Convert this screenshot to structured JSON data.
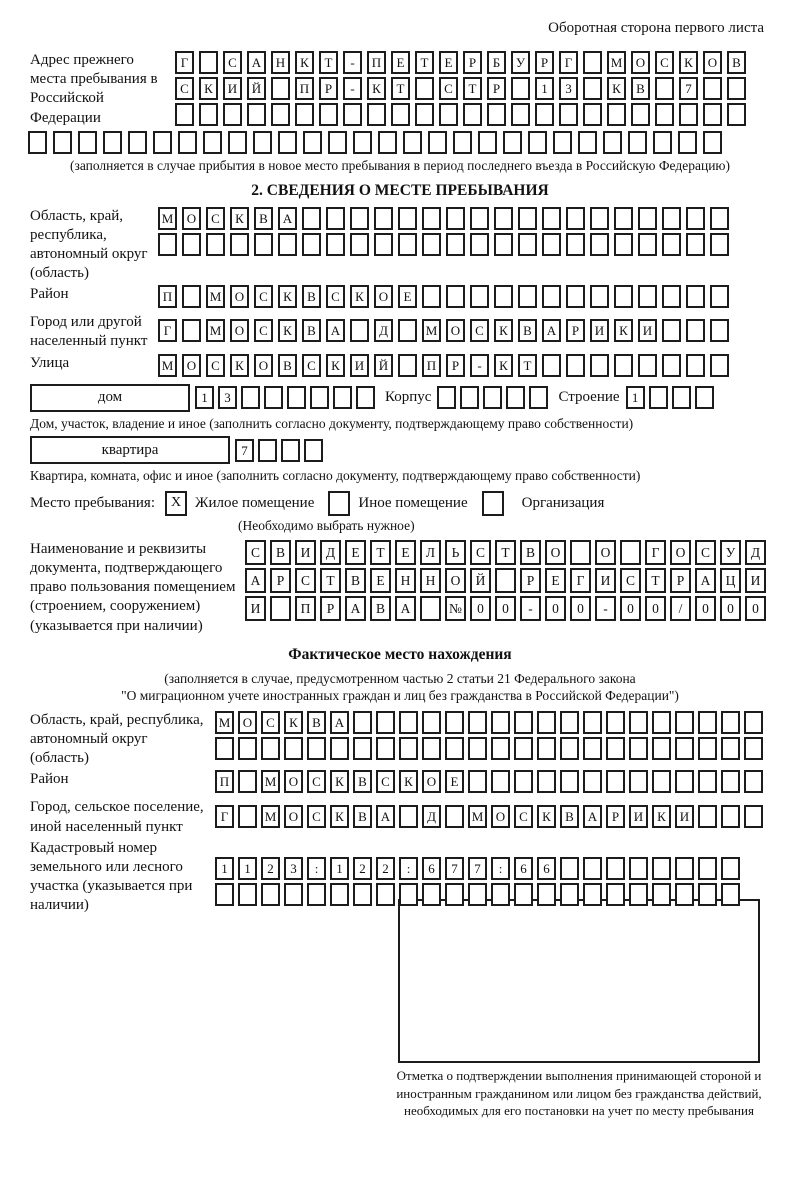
{
  "header": {
    "note": "Оборотная сторона первого листа"
  },
  "prev_address": {
    "label": "Адрес прежнего места пребывания в Российской Федерации",
    "rows": [
      [
        "Г",
        "",
        "С",
        "А",
        "Н",
        "К",
        "Т",
        "-",
        "П",
        "Е",
        "Т",
        "Е",
        "Р",
        "Б",
        "У",
        "Р",
        "Г",
        "",
        "М",
        "О",
        "С",
        "К",
        "О",
        "В"
      ],
      [
        "С",
        "К",
        "И",
        "Й",
        "",
        "П",
        "Р",
        "-",
        "К",
        "Т",
        "",
        "С",
        "Т",
        "Р",
        "",
        "1",
        "3",
        "",
        "К",
        "В",
        "",
        "7",
        "",
        ""
      ],
      [
        "",
        "",
        "",
        "",
        "",
        "",
        "",
        "",
        "",
        "",
        "",
        "",
        "",
        "",
        "",
        "",
        "",
        "",
        "",
        "",
        "",
        "",
        "",
        ""
      ]
    ],
    "overflow_row": [
      "",
      "",
      "",
      "",
      "",
      "",
      "",
      "",
      "",
      "",
      "",
      "",
      "",
      "",
      "",
      "",
      "",
      "",
      "",
      "",
      "",
      "",
      "",
      "",
      "",
      "",
      "",
      ""
    ],
    "note": "(заполняется в случае прибытия в новое место пребывания в период последнего въезда в Российскую Федерацию)"
  },
  "section2": {
    "title": "2. СВЕДЕНИЯ О МЕСТЕ ПРЕБЫВАНИЯ",
    "region": {
      "label": "Область, край, республика, автономный округ (область)",
      "rows": [
        [
          "М",
          "О",
          "С",
          "К",
          "В",
          "А",
          "",
          "",
          "",
          "",
          "",
          "",
          "",
          "",
          "",
          "",
          "",
          "",
          "",
          "",
          "",
          "",
          "",
          ""
        ],
        [
          "",
          "",
          "",
          "",
          "",
          "",
          "",
          "",
          "",
          "",
          "",
          "",
          "",
          "",
          "",
          "",
          "",
          "",
          "",
          "",
          "",
          "",
          "",
          ""
        ]
      ]
    },
    "district": {
      "label": "Район",
      "row": [
        "П",
        "",
        "М",
        "О",
        "С",
        "К",
        "В",
        "С",
        "К",
        "О",
        "Е",
        "",
        "",
        "",
        "",
        "",
        "",
        "",
        "",
        "",
        "",
        "",
        "",
        ""
      ]
    },
    "city": {
      "label": "Город или другой населенный пункт",
      "row": [
        "Г",
        "",
        "М",
        "О",
        "С",
        "К",
        "В",
        "А",
        "",
        "Д",
        "",
        "М",
        "О",
        "С",
        "К",
        "В",
        "А",
        "Р",
        "И",
        "К",
        "И",
        "",
        "",
        ""
      ]
    },
    "street": {
      "label": "Улица",
      "row": [
        "М",
        "О",
        "С",
        "К",
        "О",
        "В",
        "С",
        "К",
        "И",
        "Й",
        "",
        "П",
        "Р",
        "-",
        "К",
        "Т",
        "",
        "",
        "",
        "",
        "",
        "",
        "",
        ""
      ]
    },
    "house": {
      "box_label": "дом",
      "cells": [
        "1",
        "3",
        "",
        "",
        "",
        "",
        "",
        ""
      ],
      "korpus_label": "Корпус",
      "korpus_cells": [
        "",
        "",
        "",
        "",
        ""
      ],
      "stroenie_label": "Строение",
      "stroenie_cells": [
        "1",
        "",
        "",
        ""
      ],
      "note": "Дом, участок, владение и иное (заполнить согласно документу, подтверждающему право собственности)"
    },
    "apartment": {
      "box_label": "квартира",
      "cells": [
        "7",
        "",
        "",
        ""
      ],
      "note": "Квартира, комната, офис и иное (заполнить согласно документу, подтверждающему право собственности)"
    },
    "stay_type": {
      "label": "Место пребывания:",
      "marks": [
        [
          "X"
        ],
        [
          ""
        ],
        [
          ""
        ]
      ],
      "options": [
        "Жилое помещение",
        "Иное помещение",
        "Организация"
      ],
      "note": "(Необходимо выбрать нужное)"
    },
    "doc": {
      "label": "Наименование и реквизиты документа, подтверждающего право пользования помещением (строением, сооружением) (указывается при наличии)",
      "rows": [
        [
          "С",
          "В",
          "И",
          "Д",
          "Е",
          "Т",
          "Е",
          "Л",
          "Ь",
          "С",
          "Т",
          "В",
          "О",
          "",
          "О",
          "",
          "Г",
          "О",
          "С",
          "У",
          "Д"
        ],
        [
          "А",
          "Р",
          "С",
          "Т",
          "В",
          "Е",
          "Н",
          "Н",
          "О",
          "Й",
          "",
          "Р",
          "Е",
          "Г",
          "И",
          "С",
          "Т",
          "Р",
          "А",
          "Ц",
          "И"
        ],
        [
          "И",
          "",
          "П",
          "Р",
          "А",
          "В",
          "А",
          "",
          "№",
          "0",
          "0",
          "-",
          "0",
          "0",
          "-",
          "0",
          "0",
          "/",
          "0",
          "0",
          "0"
        ]
      ]
    }
  },
  "actual_location": {
    "title": "Фактическое место нахождения",
    "note1": "(заполняется в случае, предусмотренном частью 2 статьи 21 Федерального закона",
    "note2": "\"О миграционном учете иностранных граждан и лиц без гражданства в Российской Федерации\")",
    "region": {
      "label": "Область, край, республика, автономный округ (область)",
      "rows": [
        [
          "М",
          "О",
          "С",
          "К",
          "В",
          "А",
          "",
          "",
          "",
          "",
          "",
          "",
          "",
          "",
          "",
          "",
          "",
          "",
          "",
          "",
          "",
          "",
          "",
          ""
        ],
        [
          "",
          "",
          "",
          "",
          "",
          "",
          "",
          "",
          "",
          "",
          "",
          "",
          "",
          "",
          "",
          "",
          "",
          "",
          "",
          "",
          "",
          "",
          "",
          ""
        ]
      ]
    },
    "district": {
      "label": "Район",
      "row": [
        "П",
        "",
        "М",
        "О",
        "С",
        "К",
        "В",
        "С",
        "К",
        "О",
        "Е",
        "",
        "",
        "",
        "",
        "",
        "",
        "",
        "",
        "",
        "",
        "",
        "",
        ""
      ]
    },
    "city": {
      "label": "Город, сельское поселение, иной населенный пункт",
      "row": [
        "Г",
        "",
        "М",
        "О",
        "С",
        "К",
        "В",
        "А",
        "",
        "Д",
        "",
        "М",
        "О",
        "С",
        "К",
        "В",
        "А",
        "Р",
        "И",
        "К",
        "И",
        "",
        "",
        ""
      ]
    },
    "cadastral": {
      "label": "Кадастровый номер земельного или лесного участка (указывается при наличии)",
      "rows": [
        [
          "1",
          "1",
          "2",
          "3",
          ":",
          "1",
          "2",
          "2",
          ":",
          "6",
          "7",
          "7",
          ":",
          "6",
          "6",
          "",
          "",
          "",
          "",
          "",
          "",
          "",
          ""
        ],
        [
          "",
          "",
          "",
          "",
          "",
          "",
          "",
          "",
          "",
          "",
          "",
          "",
          "",
          "",
          "",
          "",
          "",
          "",
          "",
          "",
          "",
          "",
          ""
        ]
      ]
    },
    "stamp_note": "Отметка о подтверждении выполнения принимающей стороной и иностранным гражданином или лицом без гражданства действий, необходимых для его постановки на учет по месту пребывания"
  }
}
